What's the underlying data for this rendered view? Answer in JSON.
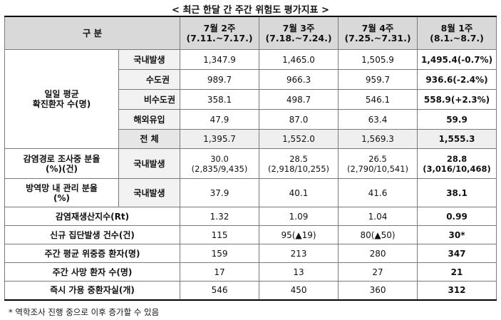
{
  "title": "< 최근 한달 간 주간 위험도 평가지표 >",
  "header": {
    "category": "구 분",
    "weeks": [
      {
        "label": "7월 2주",
        "range": "(7.11.~7.17.)"
      },
      {
        "label": "7월 3주",
        "range": "(7.18.~7.24.)"
      },
      {
        "label": "7월 4주",
        "range": "(7.25.~7.31.)"
      },
      {
        "label": "8월 1주",
        "range": "(8.1.~8.7.)"
      }
    ]
  },
  "confirmed": {
    "group_label_1": "일일 평균",
    "group_label_2": "확진환자 수(명)",
    "rows": [
      {
        "label": "국내발생",
        "values": [
          "1,347.9",
          "1,465.0",
          "1,505.9",
          "1,495.4(-0.7%)"
        ]
      },
      {
        "label": "수도권",
        "values": [
          "989.7",
          "966.3",
          "959.7",
          "936.6(-2.4%)"
        ]
      },
      {
        "label": "비수도권",
        "values": [
          "358.1",
          "498.7",
          "546.1",
          "558.9(+2.3%)"
        ]
      },
      {
        "label": "해외유입",
        "values": [
          "47.9",
          "87.0",
          "63.4",
          "59.9"
        ]
      },
      {
        "label": "전 체",
        "values": [
          "1,395.7",
          "1,552.0",
          "1,569.3",
          "1,555.3"
        ]
      }
    ]
  },
  "investigation": {
    "label_1": "감염경로 조사중 분율",
    "label_2": "(%)(건)",
    "sub": "국내발생",
    "values": [
      "30.0",
      "28.5",
      "26.5",
      "28.8"
    ],
    "counts": [
      "(2,835/9,435)",
      "(2,918/10,255)",
      "(2,790/10,541)",
      "(3,016/10,468)"
    ]
  },
  "management": {
    "label_1": "방역망 내 관리 분율",
    "label_2": "(%)",
    "sub": "국내발생",
    "values": [
      "37.9",
      "40.1",
      "41.6",
      "38.1"
    ]
  },
  "simple_rows": [
    {
      "label": "감염재생산지수(Rt)",
      "values": [
        "1.32",
        "1.09",
        "1.04",
        "0.99"
      ]
    },
    {
      "label": "신규 집단발생 건수(건)",
      "values": [
        "115",
        "95(▲19)",
        "80(▲50)",
        "30*"
      ]
    },
    {
      "label": "주간 평균 위중증 환자(명)",
      "values": [
        "159",
        "213",
        "280",
        "347"
      ]
    },
    {
      "label": "주간 사망 환자 수(명)",
      "values": [
        "17",
        "13",
        "27",
        "21"
      ]
    },
    {
      "label": "즉시 가용 중환자실(개)",
      "values": [
        "546",
        "450",
        "360",
        "312"
      ]
    }
  ],
  "footnote": "* 역학조사 진행 중으로 이후 증가할 수 있음"
}
